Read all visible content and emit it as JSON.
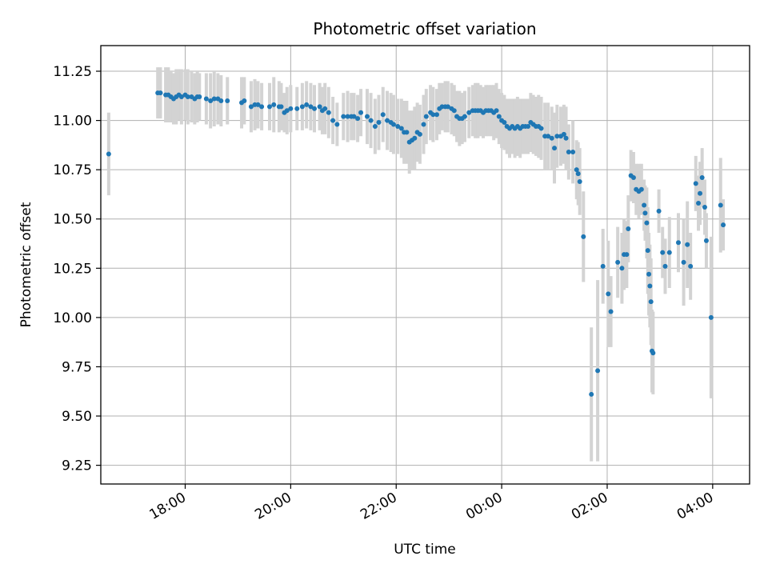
{
  "chart_data": {
    "type": "scatter",
    "title": "Photometric offset variation",
    "xlabel": "UTC time",
    "ylabel": "Photometric offset",
    "x_unit": "hours (UTC, continuing past midnight)",
    "xlim": [
      16.4,
      28.7
    ],
    "ylim": [
      9.155,
      11.38
    ],
    "x_ticks": [
      {
        "value": 18,
        "label": "18:00"
      },
      {
        "value": 20,
        "label": "20:00"
      },
      {
        "value": 22,
        "label": "22:00"
      },
      {
        "value": 24,
        "label": "00:00"
      },
      {
        "value": 26,
        "label": "02:00"
      },
      {
        "value": 28,
        "label": "04:00"
      }
    ],
    "y_ticks": [
      {
        "value": 9.25,
        "label": "9.25"
      },
      {
        "value": 9.5,
        "label": "9.50"
      },
      {
        "value": 9.75,
        "label": "9.75"
      },
      {
        "value": 10.0,
        "label": "10.00"
      },
      {
        "value": 10.25,
        "label": "10.25"
      },
      {
        "value": 10.5,
        "label": "10.50"
      },
      {
        "value": 10.75,
        "label": "10.75"
      },
      {
        "value": 11.0,
        "label": "11.00"
      },
      {
        "value": 11.25,
        "label": "11.25"
      }
    ],
    "grid": true,
    "colors": {
      "point": "#1f77b4",
      "errorbar": "#d3d3d3",
      "grid": "#b0b0b0"
    },
    "series": [
      {
        "points": [
          [
            16.55,
            10.83,
            0.21
          ],
          [
            17.48,
            11.14,
            0.13
          ],
          [
            17.53,
            11.14,
            0.13
          ],
          [
            17.63,
            11.13,
            0.14
          ],
          [
            17.68,
            11.13,
            0.14
          ],
          [
            17.73,
            11.12,
            0.13
          ],
          [
            17.78,
            11.11,
            0.13
          ],
          [
            17.83,
            11.12,
            0.14
          ],
          [
            17.88,
            11.13,
            0.13
          ],
          [
            17.93,
            11.12,
            0.14
          ],
          [
            18.0,
            11.13,
            0.13
          ],
          [
            18.05,
            11.12,
            0.14
          ],
          [
            18.12,
            11.12,
            0.13
          ],
          [
            18.18,
            11.11,
            0.13
          ],
          [
            18.23,
            11.12,
            0.13
          ],
          [
            18.27,
            11.12,
            0.12
          ],
          [
            18.4,
            11.11,
            0.13
          ],
          [
            18.48,
            11.1,
            0.14
          ],
          [
            18.55,
            11.11,
            0.14
          ],
          [
            18.62,
            11.11,
            0.13
          ],
          [
            18.68,
            11.1,
            0.13
          ],
          [
            18.8,
            11.1,
            0.12
          ],
          [
            19.07,
            11.09,
            0.13
          ],
          [
            19.12,
            11.1,
            0.12
          ],
          [
            19.25,
            11.07,
            0.13
          ],
          [
            19.32,
            11.08,
            0.13
          ],
          [
            19.38,
            11.08,
            0.12
          ],
          [
            19.45,
            11.07,
            0.12
          ],
          [
            19.6,
            11.07,
            0.12
          ],
          [
            19.68,
            11.08,
            0.14
          ],
          [
            19.78,
            11.07,
            0.13
          ],
          [
            19.82,
            11.07,
            0.12
          ],
          [
            19.88,
            11.04,
            0.1
          ],
          [
            19.93,
            11.05,
            0.12
          ],
          [
            20.0,
            11.06,
            0.12
          ],
          [
            20.12,
            11.06,
            0.11
          ],
          [
            20.22,
            11.07,
            0.12
          ],
          [
            20.3,
            11.08,
            0.12
          ],
          [
            20.38,
            11.07,
            0.12
          ],
          [
            20.45,
            11.06,
            0.12
          ],
          [
            20.55,
            11.07,
            0.12
          ],
          [
            20.6,
            11.05,
            0.12
          ],
          [
            20.65,
            11.06,
            0.13
          ],
          [
            20.72,
            11.04,
            0.13
          ],
          [
            20.8,
            11.0,
            0.12
          ],
          [
            20.88,
            10.98,
            0.11
          ],
          [
            21.0,
            11.02,
            0.12
          ],
          [
            21.08,
            11.02,
            0.13
          ],
          [
            21.15,
            11.02,
            0.12
          ],
          [
            21.2,
            11.02,
            0.12
          ],
          [
            21.27,
            11.01,
            0.12
          ],
          [
            21.33,
            11.04,
            0.12
          ],
          [
            21.45,
            11.02,
            0.14
          ],
          [
            21.52,
            11.0,
            0.14
          ],
          [
            21.6,
            10.97,
            0.14
          ],
          [
            21.67,
            10.99,
            0.14
          ],
          [
            21.75,
            11.03,
            0.14
          ],
          [
            21.83,
            11.0,
            0.15
          ],
          [
            21.9,
            10.99,
            0.15
          ],
          [
            21.95,
            10.98,
            0.15
          ],
          [
            22.03,
            10.97,
            0.14
          ],
          [
            22.1,
            10.96,
            0.15
          ],
          [
            22.15,
            10.94,
            0.16
          ],
          [
            22.2,
            10.94,
            0.16
          ],
          [
            22.25,
            10.89,
            0.16
          ],
          [
            22.3,
            10.9,
            0.15
          ],
          [
            22.35,
            10.91,
            0.16
          ],
          [
            22.4,
            10.94,
            0.15
          ],
          [
            22.45,
            10.93,
            0.15
          ],
          [
            22.52,
            10.98,
            0.15
          ],
          [
            22.57,
            11.02,
            0.14
          ],
          [
            22.65,
            11.04,
            0.14
          ],
          [
            22.7,
            11.03,
            0.14
          ],
          [
            22.77,
            11.03,
            0.13
          ],
          [
            22.82,
            11.06,
            0.13
          ],
          [
            22.87,
            11.07,
            0.12
          ],
          [
            22.93,
            11.07,
            0.13
          ],
          [
            22.98,
            11.07,
            0.13
          ],
          [
            23.05,
            11.06,
            0.13
          ],
          [
            23.1,
            11.05,
            0.13
          ],
          [
            23.15,
            11.02,
            0.13
          ],
          [
            23.2,
            11.01,
            0.14
          ],
          [
            23.25,
            11.01,
            0.13
          ],
          [
            23.3,
            11.02,
            0.13
          ],
          [
            23.38,
            11.04,
            0.13
          ],
          [
            23.45,
            11.05,
            0.13
          ],
          [
            23.5,
            11.05,
            0.14
          ],
          [
            23.55,
            11.05,
            0.14
          ],
          [
            23.6,
            11.05,
            0.13
          ],
          [
            23.65,
            11.04,
            0.13
          ],
          [
            23.7,
            11.05,
            0.13
          ],
          [
            23.75,
            11.05,
            0.13
          ],
          [
            23.8,
            11.05,
            0.13
          ],
          [
            23.85,
            11.04,
            0.14
          ],
          [
            23.9,
            11.05,
            0.14
          ],
          [
            23.95,
            11.02,
            0.14
          ],
          [
            24.0,
            11.0,
            0.14
          ],
          [
            24.05,
            10.99,
            0.14
          ],
          [
            24.1,
            10.97,
            0.14
          ],
          [
            24.15,
            10.96,
            0.15
          ],
          [
            24.2,
            10.97,
            0.14
          ],
          [
            24.25,
            10.96,
            0.15
          ],
          [
            24.3,
            10.97,
            0.15
          ],
          [
            24.35,
            10.96,
            0.15
          ],
          [
            24.4,
            10.97,
            0.14
          ],
          [
            24.45,
            10.97,
            0.14
          ],
          [
            24.5,
            10.97,
            0.14
          ],
          [
            24.55,
            10.99,
            0.15
          ],
          [
            24.6,
            10.98,
            0.15
          ],
          [
            24.65,
            10.97,
            0.15
          ],
          [
            24.7,
            10.97,
            0.16
          ],
          [
            24.75,
            10.96,
            0.16
          ],
          [
            24.82,
            10.92,
            0.17
          ],
          [
            24.88,
            10.92,
            0.17
          ],
          [
            24.95,
            10.91,
            0.16
          ],
          [
            25.0,
            10.86,
            0.18
          ],
          [
            25.05,
            10.92,
            0.16
          ],
          [
            25.12,
            10.92,
            0.15
          ],
          [
            25.18,
            10.93,
            0.15
          ],
          [
            25.22,
            10.91,
            0.16
          ],
          [
            25.27,
            10.84,
            0.14
          ],
          [
            25.35,
            10.84,
            0.16
          ],
          [
            25.42,
            10.75,
            0.15
          ],
          [
            25.45,
            10.73,
            0.16
          ],
          [
            25.48,
            10.69,
            0.17
          ],
          [
            25.55,
            10.41,
            0.23
          ],
          [
            25.7,
            9.61,
            0.34
          ],
          [
            25.82,
            9.73,
            0.46
          ],
          [
            25.92,
            10.26,
            0.19
          ],
          [
            26.02,
            10.12,
            0.27
          ],
          [
            26.07,
            10.03,
            0.18
          ],
          [
            26.2,
            10.28,
            0.18
          ],
          [
            26.28,
            10.25,
            0.18
          ],
          [
            26.32,
            10.32,
            0.18
          ],
          [
            26.37,
            10.32,
            0.17
          ],
          [
            26.4,
            10.45,
            0.17
          ],
          [
            26.45,
            10.72,
            0.13
          ],
          [
            26.5,
            10.71,
            0.13
          ],
          [
            26.55,
            10.65,
            0.13
          ],
          [
            26.6,
            10.64,
            0.14
          ],
          [
            26.65,
            10.65,
            0.13
          ],
          [
            26.7,
            10.57,
            0.13
          ],
          [
            26.72,
            10.53,
            0.14
          ],
          [
            26.75,
            10.48,
            0.18
          ],
          [
            26.77,
            10.34,
            0.22
          ],
          [
            26.79,
            10.22,
            0.21
          ],
          [
            26.81,
            10.16,
            0.21
          ],
          [
            26.83,
            10.08,
            0.22
          ],
          [
            26.85,
            9.83,
            0.21
          ],
          [
            26.87,
            9.82,
            0.21
          ],
          [
            26.98,
            10.54,
            0.11
          ],
          [
            27.05,
            10.33,
            0.13
          ],
          [
            27.1,
            10.26,
            0.14
          ],
          [
            27.18,
            10.33,
            0.18
          ],
          [
            27.35,
            10.38,
            0.15
          ],
          [
            27.45,
            10.28,
            0.22
          ],
          [
            27.52,
            10.37,
            0.22
          ],
          [
            27.58,
            10.26,
            0.17
          ],
          [
            27.68,
            10.68,
            0.14
          ],
          [
            27.73,
            10.58,
            0.14
          ],
          [
            27.76,
            10.63,
            0.16
          ],
          [
            27.8,
            10.71,
            0.15
          ],
          [
            27.85,
            10.56,
            0.14
          ],
          [
            27.88,
            10.39,
            0.14
          ],
          [
            27.97,
            10.0,
            0.41
          ],
          [
            28.15,
            10.57,
            0.24
          ],
          [
            28.2,
            10.47,
            0.13
          ]
        ]
      }
    ]
  }
}
